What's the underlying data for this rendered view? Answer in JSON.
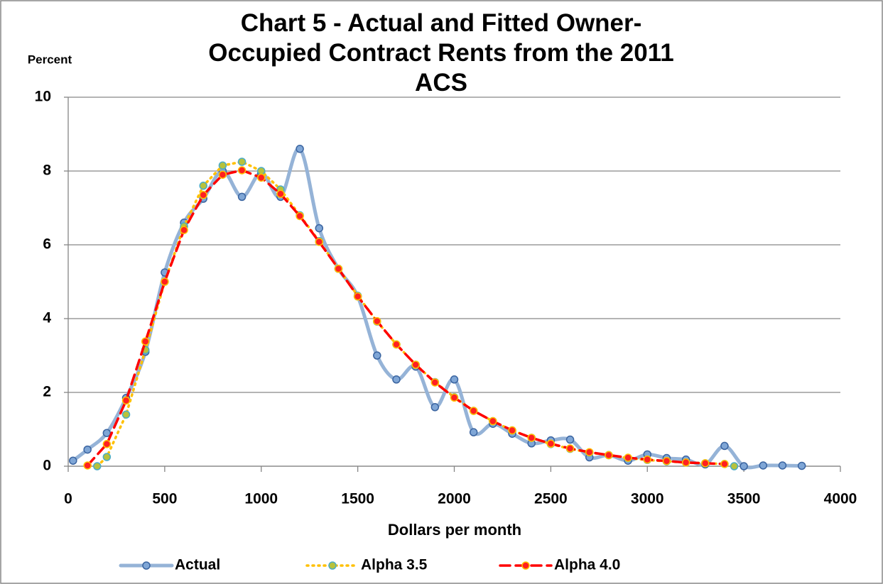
{
  "chart_data": {
    "type": "line",
    "title": "Chart 5 - Actual and Fitted Owner-Occupied Contract Rents from the 2011 ACS",
    "y_label": "Percent",
    "x_label": "Dollars per month",
    "xlim": [
      0,
      4000
    ],
    "xticks": [
      0,
      500,
      1000,
      1500,
      2000,
      2500,
      3000,
      3500,
      4000
    ],
    "ylim": [
      0,
      10
    ],
    "yticks": [
      0,
      2,
      4,
      6,
      8,
      10
    ],
    "grid": true,
    "legend": "bottom",
    "series": [
      {
        "name": "Actual",
        "color": "#95b3d7",
        "style": "smooth",
        "x": [
          25,
          100,
          200,
          300,
          400,
          500,
          600,
          700,
          800,
          900,
          1000,
          1100,
          1200,
          1300,
          1400,
          1500,
          1600,
          1700,
          1800,
          1900,
          2000,
          2100,
          2200,
          2300,
          2400,
          2500,
          2600,
          2700,
          2800,
          2900,
          3000,
          3100,
          3200,
          3300,
          3400,
          3500,
          3600,
          3700,
          3800
        ],
        "values": [
          0.15,
          0.45,
          0.9,
          1.85,
          3.1,
          5.25,
          6.6,
          7.25,
          8.0,
          7.3,
          7.95,
          7.3,
          8.6,
          6.45,
          5.35,
          4.6,
          3.0,
          2.35,
          2.7,
          1.6,
          2.35,
          0.92,
          1.15,
          0.88,
          0.62,
          0.7,
          0.72,
          0.24,
          0.3,
          0.15,
          0.32,
          0.22,
          0.18,
          0.05,
          0.55,
          0.0,
          0.02,
          0.02,
          0.01
        ]
      },
      {
        "name": "Alpha 3.5",
        "color": "#ffc000",
        "style": "dotted",
        "x": [
          150,
          200,
          300,
          400,
          500,
          600,
          700,
          800,
          900,
          1000,
          1100,
          1200,
          1300,
          1400,
          1500,
          1600,
          1700,
          1800,
          1900,
          2000,
          2100,
          2200,
          2300,
          2400,
          2500,
          2600,
          2700,
          2800,
          2900,
          3000,
          3100,
          3200,
          3300,
          3400,
          3450
        ],
        "values": [
          0.0,
          0.25,
          1.4,
          3.15,
          5.0,
          6.5,
          7.6,
          8.15,
          8.25,
          8.0,
          7.5,
          6.8,
          6.1,
          5.35,
          4.62,
          3.92,
          3.3,
          2.75,
          2.28,
          1.87,
          1.5,
          1.22,
          0.97,
          0.77,
          0.6,
          0.47,
          0.37,
          0.3,
          0.22,
          0.17,
          0.13,
          0.1,
          0.08,
          0.06,
          0.0
        ]
      },
      {
        "name": "Alpha 4.0",
        "color": "#ff0000",
        "style": "dashed",
        "x": [
          100,
          200,
          300,
          400,
          500,
          600,
          700,
          800,
          900,
          1000,
          1100,
          1200,
          1300,
          1400,
          1500,
          1600,
          1700,
          1800,
          1900,
          2000,
          2100,
          2200,
          2300,
          2400,
          2500,
          2600,
          2700,
          2800,
          2900,
          3000,
          3100,
          3200,
          3300,
          3400
        ],
        "values": [
          0.02,
          0.6,
          1.78,
          3.38,
          5.0,
          6.4,
          7.35,
          7.9,
          8.02,
          7.82,
          7.38,
          6.78,
          6.08,
          5.35,
          4.6,
          3.93,
          3.3,
          2.75,
          2.27,
          1.86,
          1.5,
          1.22,
          0.97,
          0.77,
          0.61,
          0.48,
          0.38,
          0.3,
          0.23,
          0.18,
          0.14,
          0.1,
          0.08,
          0.06
        ]
      }
    ]
  }
}
